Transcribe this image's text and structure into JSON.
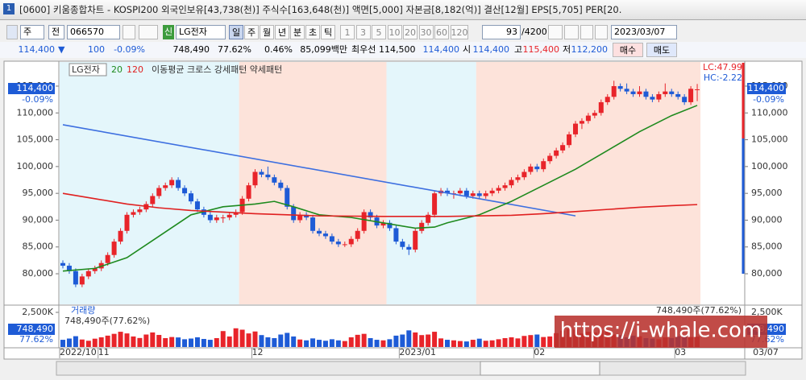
{
  "header": {
    "title": "[0600] 키움종합차트 - KOSPI200 외국인보유[43,738(천)] 주식수[163,648(천)] 액면[5,000] 자본금[8,182(억)] 결산[12월] EPS[5,705] PER[20.",
    "tab": "1"
  },
  "toolbar": {
    "period_type": "주",
    "market": "전",
    "code": "066570",
    "badge": "신",
    "name": "LG전자",
    "periods": [
      "일",
      "주",
      "월",
      "년",
      "분",
      "초",
      "틱"
    ],
    "intervals": [
      "1",
      "3",
      "5",
      "10",
      "20",
      "30",
      "60",
      "120"
    ],
    "count": "93",
    "count_max": "/4200",
    "date": "2023/03/07"
  },
  "quote": {
    "price": "114,400",
    "arrow": "▼",
    "change": "100",
    "change_pct": "-0.09%",
    "volume": "748,490",
    "volume_pct": "77.62%",
    "turnover_pct": "0.46%",
    "amount": "85,099백만",
    "best_label": "최우선",
    "best_ask": "114,500",
    "best_bid": "114,400",
    "open_label": "시",
    "open": "114,400",
    "high_label": "고",
    "high": "115,400",
    "low_label": "저",
    "low": "112,200",
    "buy": "매수",
    "sell": "매도"
  },
  "chart_data": {
    "type": "candlestick",
    "legend": {
      "name": "LG전자",
      "ma_title": "이동평균 크로스 강세패턴 약세패턴"
    },
    "up_color": "#e8242a",
    "down_color": "#1e5bd6",
    "ylim": [
      74300,
      119350
    ],
    "yticks": [
      {
        "value": 80000,
        "label": "80,000"
      },
      {
        "value": 85000,
        "label": "85,000"
      },
      {
        "value": 90000,
        "label": "90,000"
      },
      {
        "value": 95000,
        "label": "95,000"
      },
      {
        "value": 100000,
        "label": "100,000"
      },
      {
        "value": 105000,
        "label": "105,000"
      },
      {
        "value": 110000,
        "label": "110,000"
      },
      {
        "value": 115000,
        "label": "115,000"
      }
    ],
    "grid": false,
    "right_labels": {
      "lc": "LC:47.99",
      "hc": "HC:-2.22",
      "price": "114,400",
      "pct": "-0.09%"
    },
    "bands": [
      {
        "from": 0,
        "to": 27,
        "color": "#e4f6fb"
      },
      {
        "from": 28,
        "to": 50,
        "color": "#fde3da"
      },
      {
        "from": 51,
        "to": 64,
        "color": "#e4f6fb"
      },
      {
        "from": 65,
        "to": 99,
        "color": "#fde3da"
      }
    ],
    "ohlc": [
      [
        82000,
        82500,
        81000,
        81500
      ],
      [
        81500,
        82000,
        80000,
        80500
      ],
      [
        80500,
        81000,
        77500,
        78000
      ],
      [
        78000,
        80000,
        77500,
        79500
      ],
      [
        79500,
        81000,
        79000,
        80500
      ],
      [
        80500,
        81500,
        80000,
        81000
      ],
      [
        81000,
        82500,
        80500,
        82000
      ],
      [
        82000,
        84000,
        81500,
        83500
      ],
      [
        83500,
        86500,
        83000,
        86000
      ],
      [
        86000,
        88500,
        85500,
        88000
      ],
      [
        88000,
        91500,
        87500,
        91000
      ],
      [
        91000,
        92000,
        90500,
        91500
      ],
      [
        91500,
        92500,
        91000,
        92000
      ],
      [
        92000,
        93500,
        91500,
        93000
      ],
      [
        93000,
        95000,
        92500,
        94500
      ],
      [
        94500,
        96500,
        94000,
        96000
      ],
      [
        96000,
        97000,
        95500,
        96500
      ],
      [
        96500,
        98000,
        96000,
        97500
      ],
      [
        97500,
        98000,
        95500,
        96000
      ],
      [
        96000,
        96500,
        94500,
        95000
      ],
      [
        95000,
        95500,
        93000,
        93500
      ],
      [
        93500,
        94000,
        91500,
        92000
      ],
      [
        92000,
        92500,
        90500,
        91000
      ],
      [
        91000,
        91500,
        89500,
        90000
      ],
      [
        90000,
        91000,
        89500,
        90500
      ],
      [
        90500,
        91000,
        89500,
        90500
      ],
      [
        90500,
        91500,
        90000,
        91000
      ],
      [
        91000,
        92000,
        90500,
        91500
      ],
      [
        91500,
        94500,
        91000,
        94000
      ],
      [
        94000,
        97000,
        93500,
        96500
      ],
      [
        96500,
        99500,
        96000,
        99000
      ],
      [
        99000,
        99500,
        98000,
        98500
      ],
      [
        98500,
        100000,
        97500,
        98000
      ],
      [
        98000,
        98500,
        96500,
        97000
      ],
      [
        97000,
        97500,
        95500,
        96000
      ],
      [
        96000,
        96500,
        92000,
        92500
      ],
      [
        92500,
        93000,
        89500,
        90000
      ],
      [
        90000,
        91500,
        89500,
        91000
      ],
      [
        91000,
        91500,
        90000,
        90500
      ],
      [
        90500,
        91000,
        87500,
        88000
      ],
      [
        88000,
        88500,
        87000,
        87500
      ],
      [
        87500,
        88000,
        86500,
        87000
      ],
      [
        87000,
        87500,
        85500,
        86000
      ],
      [
        86000,
        86500,
        85000,
        85500
      ],
      [
        85500,
        86000,
        85000,
        85500
      ],
      [
        85500,
        87000,
        85000,
        86500
      ],
      [
        86500,
        88500,
        86000,
        88000
      ],
      [
        88000,
        92000,
        87500,
        91500
      ],
      [
        91500,
        92000,
        90000,
        90500
      ],
      [
        90500,
        91000,
        88500,
        89000
      ],
      [
        89000,
        90000,
        88500,
        89500
      ],
      [
        89500,
        90000,
        88000,
        88500
      ],
      [
        88500,
        89000,
        85500,
        86000
      ],
      [
        86000,
        86500,
        84500,
        85000
      ],
      [
        85000,
        85500,
        83500,
        84500
      ],
      [
        84500,
        88500,
        84000,
        88000
      ],
      [
        88000,
        90000,
        87500,
        89500
      ],
      [
        89500,
        91500,
        89000,
        91000
      ],
      [
        91000,
        95500,
        90500,
        95000
      ],
      [
        95000,
        96000,
        94500,
        95500
      ],
      [
        95500,
        96000,
        94500,
        95000
      ],
      [
        95000,
        95500,
        94000,
        95000
      ],
      [
        95000,
        96000,
        94500,
        95500
      ],
      [
        95500,
        96000,
        94000,
        94500
      ],
      [
        94500,
        95500,
        94000,
        95000
      ],
      [
        95000,
        95500,
        94000,
        94500
      ],
      [
        94500,
        95500,
        94000,
        95000
      ],
      [
        95000,
        96000,
        94500,
        95500
      ],
      [
        95500,
        96500,
        95000,
        96000
      ],
      [
        96000,
        97000,
        95500,
        96500
      ],
      [
        96500,
        98000,
        96000,
        97500
      ],
      [
        97500,
        98500,
        97000,
        98000
      ],
      [
        98000,
        99500,
        97500,
        99000
      ],
      [
        99000,
        100500,
        98500,
        100000
      ],
      [
        100000,
        100500,
        99000,
        99500
      ],
      [
        99500,
        101500,
        99000,
        101000
      ],
      [
        101000,
        102500,
        100500,
        102000
      ],
      [
        102000,
        103500,
        101500,
        103000
      ],
      [
        103000,
        104500,
        102500,
        104000
      ],
      [
        104000,
        106500,
        103500,
        106000
      ],
      [
        106000,
        108500,
        105500,
        108000
      ],
      [
        108000,
        109000,
        107000,
        108500
      ],
      [
        108500,
        110000,
        108000,
        109500
      ],
      [
        109500,
        110500,
        109000,
        110000
      ],
      [
        110000,
        112500,
        109500,
        112000
      ],
      [
        112000,
        113500,
        111500,
        113000
      ],
      [
        113000,
        116000,
        112500,
        115000
      ],
      [
        115000,
        115500,
        114000,
        114500
      ],
      [
        114500,
        115500,
        113500,
        114000
      ],
      [
        114000,
        114500,
        113000,
        113500
      ],
      [
        113500,
        115000,
        113000,
        114000
      ],
      [
        114000,
        114500,
        112500,
        113000
      ],
      [
        113000,
        113500,
        112000,
        112500
      ],
      [
        112500,
        114000,
        112000,
        113500
      ],
      [
        113500,
        115500,
        113000,
        114000
      ],
      [
        114000,
        114500,
        113000,
        113500
      ],
      [
        113500,
        114000,
        112500,
        113000
      ],
      [
        113000,
        113500,
        111500,
        112000
      ],
      [
        112000,
        115000,
        111500,
        114500
      ],
      [
        114400,
        115400,
        112200,
        114400
      ]
    ],
    "lines": [
      {
        "name": "20",
        "color": "#1e8a1e",
        "x": [
          0,
          5,
          10,
          15,
          20,
          25,
          30,
          33,
          36,
          40,
          45,
          50,
          55,
          58,
          60,
          65,
          70,
          75,
          80,
          85,
          90,
          95,
          99
        ],
        "values": [
          80500,
          81000,
          83000,
          87000,
          91000,
          92500,
          93000,
          93500,
          92500,
          91000,
          90500,
          89500,
          88500,
          88700,
          89500,
          91000,
          93500,
          96500,
          99500,
          103000,
          106500,
          109500,
          111400
        ]
      },
      {
        "name": "120",
        "color": "#e02020",
        "x": [
          0,
          5,
          10,
          15,
          20,
          25,
          30,
          40,
          50,
          60,
          70,
          75,
          80,
          85,
          90,
          95,
          99
        ],
        "values": [
          95000,
          94000,
          93000,
          92300,
          91800,
          91500,
          91200,
          90800,
          90700,
          90700,
          90900,
          91200,
          91600,
          92000,
          92400,
          92700,
          92900
        ]
      }
    ],
    "trend": {
      "color": "#3d6fe0",
      "x": [
        0,
        80
      ],
      "values": [
        107800,
        90800
      ]
    },
    "volume": {
      "title": "거래량",
      "info": "748,490주(77.62%)",
      "last": {
        "value": 748490,
        "label": "748,490"
      },
      "last_pct": "77.62%",
      "ylim": [
        0,
        2500000
      ],
      "yticks": [
        {
          "value": 2500000,
          "label": "2,500K"
        }
      ],
      "values": [
        520000,
        610000,
        780000,
        540000,
        450000,
        600000,
        700000,
        820000,
        950000,
        1100000,
        980000,
        760000,
        650000,
        900000,
        1050000,
        870000,
        640000,
        720000,
        690000,
        560000,
        610000,
        700000,
        580000,
        520000,
        640000,
        1150000,
        760000,
        1350000,
        1250000,
        980000,
        1120000,
        860000,
        700000,
        640000,
        900000,
        1020000,
        760000,
        540000,
        480000,
        620000,
        520000,
        450000,
        560000,
        480000,
        430000,
        700000,
        880000,
        950000,
        640000,
        520000,
        480000,
        560000,
        820000,
        900000,
        1200000,
        1050000,
        860000,
        900000,
        1100000,
        620000,
        520000,
        480000,
        430000,
        400000,
        520000,
        600000,
        450000,
        480000,
        560000,
        640000,
        700000,
        620000,
        800000,
        860000,
        900000,
        720000,
        760000,
        1000000,
        1180000,
        1300000,
        1250000,
        980000,
        1100000,
        1050000,
        1200000,
        1150000,
        900000,
        860000,
        700000,
        820000,
        780000,
        640000,
        600000,
        560000,
        700000,
        650000,
        780000,
        820000,
        720000,
        748490
      ]
    },
    "x_labels": [
      {
        "index": 0,
        "label": "2022/10"
      },
      {
        "index": 6,
        "label": "11"
      },
      {
        "index": 30,
        "label": "12"
      },
      {
        "index": 53,
        "label": "2023/01"
      },
      {
        "index": 74,
        "label": "02"
      },
      {
        "index": 96,
        "label": "03"
      }
    ],
    "x_end_label": "03/07",
    "watermark": "https://i-whale.com"
  }
}
